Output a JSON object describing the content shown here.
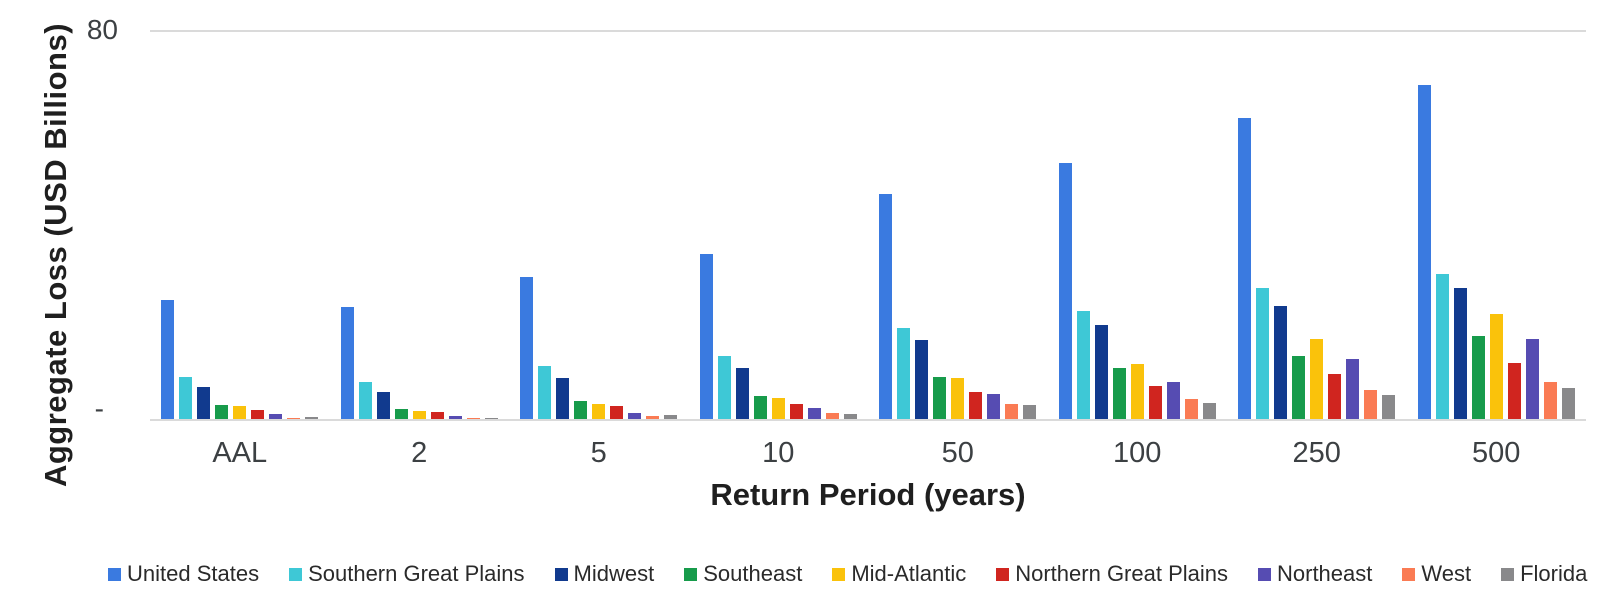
{
  "chart_data": {
    "type": "bar",
    "title": "",
    "xlabel": "Return Period (years)",
    "ylabel": "Aggregate Loss (USD Billions)",
    "ylim": [
      0,
      80
    ],
    "y_ticks": {
      "top_label": "80",
      "zero_label": "-"
    },
    "gridlines": "horizontal line at 80 and baseline at 0 only, light gray",
    "legend_position": "bottom",
    "categories": [
      "AAL",
      "2",
      "5",
      "10",
      "50",
      "100",
      "250",
      "500"
    ],
    "series": [
      {
        "name": "United States",
        "color": "#3a7ae0",
        "values": [
          24.7,
          23.1,
          29.3,
          34.2,
          46.6,
          53.0,
          62.3,
          69.1
        ]
      },
      {
        "name": "Southern Great Plains",
        "color": "#3ec8d6",
        "values": [
          8.6,
          7.6,
          10.9,
          13.1,
          18.9,
          22.3,
          27.1,
          30.0
        ]
      },
      {
        "name": "Midwest",
        "color": "#113a8e",
        "values": [
          6.7,
          5.6,
          8.4,
          10.5,
          16.4,
          19.4,
          23.3,
          27.1
        ]
      },
      {
        "name": "Southeast",
        "color": "#179b4b",
        "values": [
          2.9,
          2.1,
          3.7,
          4.8,
          8.6,
          10.5,
          13.1,
          17.2
        ]
      },
      {
        "name": "Mid-Atlantic",
        "color": "#fac20b",
        "values": [
          2.6,
          1.6,
          3.1,
          4.3,
          8.5,
          11.3,
          16.5,
          21.7
        ]
      },
      {
        "name": "Northern Great Plains",
        "color": "#d0251f",
        "values": [
          1.8,
          1.5,
          2.6,
          3.1,
          5.5,
          6.9,
          9.4,
          11.5
        ]
      },
      {
        "name": "Northeast",
        "color": "#564cb2",
        "values": [
          1.0,
          0.6,
          1.3,
          2.2,
          5.1,
          7.7,
          12.5,
          16.6
        ]
      },
      {
        "name": "West",
        "color": "#fa7b54",
        "values": [
          0.3,
          0.2,
          0.7,
          1.2,
          3.0,
          4.1,
          6.0,
          7.7
        ]
      },
      {
        "name": "Florida",
        "color": "#89898b",
        "values": [
          0.4,
          0.3,
          0.8,
          1.0,
          2.8,
          3.4,
          5.0,
          6.5
        ]
      }
    ]
  }
}
